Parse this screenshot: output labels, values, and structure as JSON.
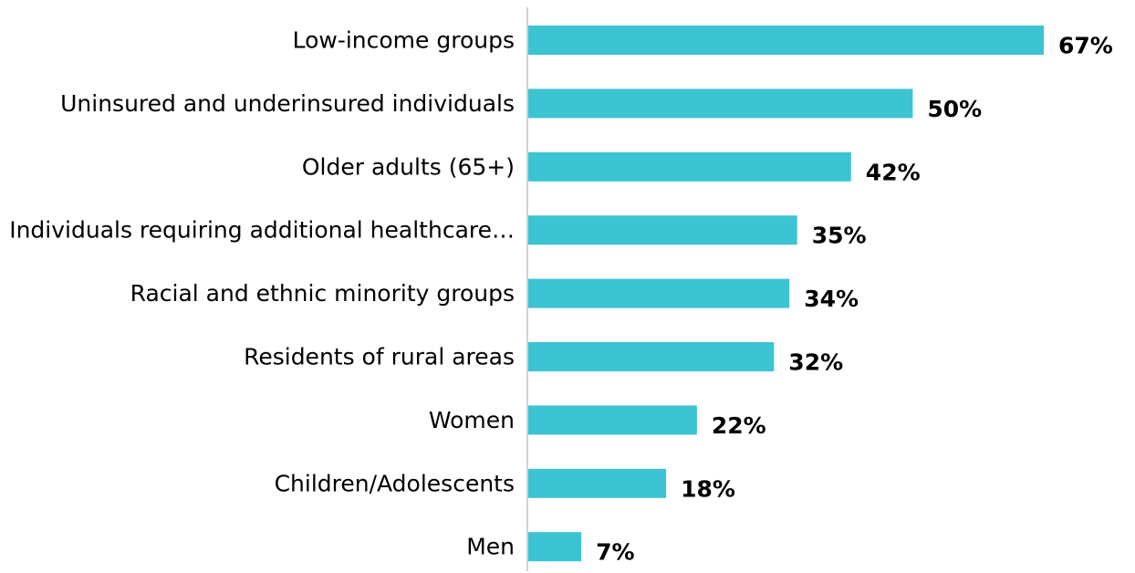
{
  "chart_data": {
    "type": "bar",
    "orientation": "horizontal",
    "categories": [
      "Low-income groups",
      "Uninsured and underinsured individuals",
      "Older adults (65+)",
      "Individuals requiring additional healthcare…",
      "Racial and ethnic minority groups",
      "Residents of rural areas",
      "Women",
      "Children/Adolescents",
      "Men"
    ],
    "values": [
      67,
      50,
      42,
      35,
      34,
      32,
      22,
      18,
      7
    ],
    "value_labels": [
      "67%",
      "50%",
      "42%",
      "35%",
      "34%",
      "32%",
      "22%",
      "18%",
      "7%"
    ],
    "unit": "%",
    "title": "",
    "xlabel": "",
    "ylabel": "",
    "xlim": [
      0,
      67
    ],
    "grid": false,
    "legend": "none",
    "bar_color": "#3CC4D2",
    "axis_color": "#D0D0D0"
  }
}
